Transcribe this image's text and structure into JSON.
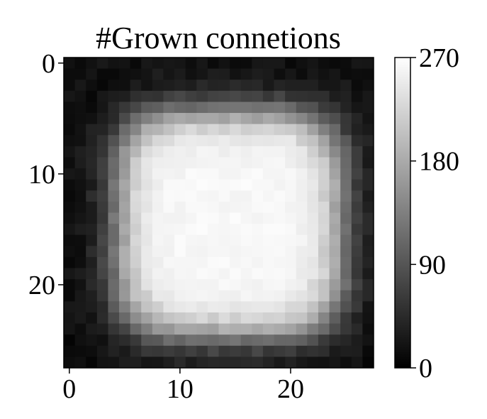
{
  "chart_data": {
    "type": "heatmap",
    "title": "#Grown connetions",
    "colormap": "gray",
    "rows": 28,
    "cols": 28,
    "value_range": [
      0,
      270
    ],
    "x_ticks": [
      {
        "value": 0,
        "label": "0"
      },
      {
        "value": 10,
        "label": "10"
      },
      {
        "value": 20,
        "label": "20"
      }
    ],
    "y_ticks": [
      {
        "value": 0,
        "label": "0"
      },
      {
        "value": 10,
        "label": "10"
      },
      {
        "value": 20,
        "label": "20"
      }
    ],
    "colorbar": {
      "ticks": [
        {
          "value": 0,
          "label": "0"
        },
        {
          "value": 90,
          "label": "90"
        },
        {
          "value": 180,
          "label": "180"
        },
        {
          "value": 270,
          "label": "270"
        }
      ]
    },
    "shape": {
      "description": "bright rounded square of high counts on dark background",
      "center": [
        14.5,
        14.5
      ],
      "half_extent_rows": 10.2,
      "half_extent_cols": 10.2,
      "plateau_value": 262,
      "background_value": 14
    }
  }
}
